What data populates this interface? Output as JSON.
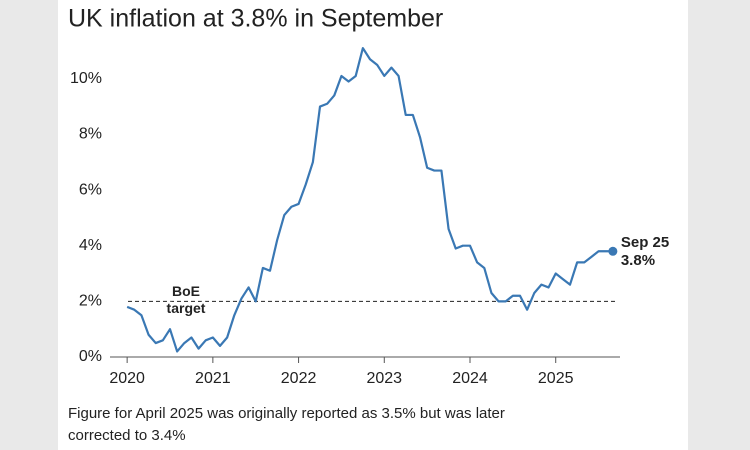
{
  "chart_data": {
    "type": "line",
    "title": "UK inflation at 3.8% in September",
    "note": [
      "Figure for April 2025 was originally reported as 3.5% but was later",
      "corrected to 3.4%"
    ],
    "x": [
      "2020-01",
      "2020-02",
      "2020-03",
      "2020-04",
      "2020-05",
      "2020-06",
      "2020-07",
      "2020-08",
      "2020-09",
      "2020-10",
      "2020-11",
      "2020-12",
      "2021-01",
      "2021-02",
      "2021-03",
      "2021-04",
      "2021-05",
      "2021-06",
      "2021-07",
      "2021-08",
      "2021-09",
      "2021-10",
      "2021-11",
      "2021-12",
      "2022-01",
      "2022-02",
      "2022-03",
      "2022-04",
      "2022-05",
      "2022-06",
      "2022-07",
      "2022-08",
      "2022-09",
      "2022-10",
      "2022-11",
      "2022-12",
      "2023-01",
      "2023-02",
      "2023-03",
      "2023-04",
      "2023-05",
      "2023-06",
      "2023-07",
      "2023-08",
      "2023-09",
      "2023-10",
      "2023-11",
      "2023-12",
      "2024-01",
      "2024-02",
      "2024-03",
      "2024-04",
      "2024-05",
      "2024-06",
      "2024-07",
      "2024-08",
      "2024-09",
      "2024-10",
      "2024-11",
      "2024-12",
      "2025-01",
      "2025-02",
      "2025-03",
      "2025-04",
      "2025-05",
      "2025-06",
      "2025-07",
      "2025-08",
      "2025-09"
    ],
    "series": [
      {
        "color": "#3a78b4",
        "values": [
          1.8,
          1.7,
          1.5,
          0.8,
          0.5,
          0.6,
          1.0,
          0.2,
          0.5,
          0.7,
          0.3,
          0.6,
          0.7,
          0.4,
          0.7,
          1.5,
          2.1,
          2.5,
          2.0,
          3.2,
          3.1,
          4.2,
          5.1,
          5.4,
          5.5,
          6.2,
          7.0,
          9.0,
          9.1,
          9.4,
          10.1,
          9.9,
          10.1,
          11.1,
          10.7,
          10.5,
          10.1,
          10.4,
          10.1,
          8.7,
          8.7,
          7.9,
          6.8,
          6.7,
          6.7,
          4.6,
          3.9,
          4.0,
          4.0,
          3.4,
          3.2,
          2.3,
          2.0,
          2.0,
          2.2,
          2.2,
          1.7,
          2.3,
          2.6,
          2.5,
          3.0,
          2.8,
          2.6,
          3.4,
          3.4,
          3.6,
          3.8,
          3.8,
          3.8
        ]
      }
    ],
    "end_label": {
      "lines": [
        "Sep 25",
        "3.8%"
      ]
    },
    "target_line": {
      "value": 2,
      "label_lines": [
        "BoE",
        "target"
      ]
    },
    "xlim": [
      2019.8,
      2025.75
    ],
    "xticks": [
      2020,
      2021,
      2022,
      2023,
      2024,
      2025
    ],
    "ylim": [
      0,
      11.5
    ],
    "yticks": [
      {
        "value": 0,
        "label": "0%"
      },
      {
        "value": 2,
        "label": "2%"
      },
      {
        "value": 4,
        "label": "4%"
      },
      {
        "value": 6,
        "label": "6%"
      },
      {
        "value": 8,
        "label": "8%"
      },
      {
        "value": 10,
        "label": "10%"
      }
    ]
  }
}
